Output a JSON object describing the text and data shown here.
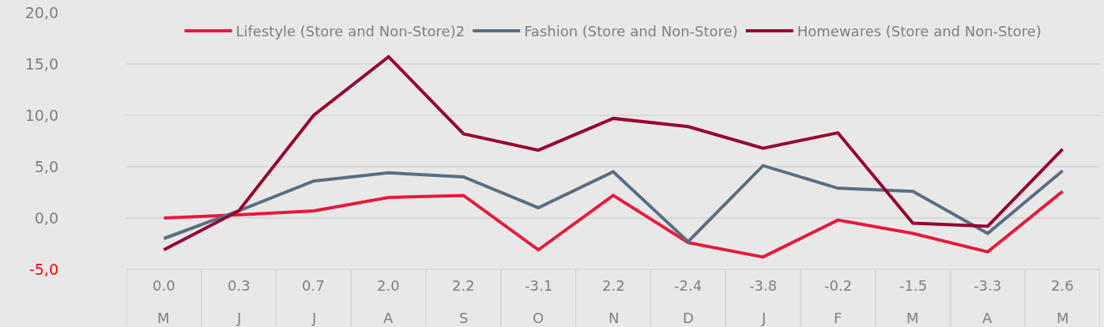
{
  "chart_data": {
    "type": "line",
    "categories": [
      "M",
      "J",
      "J",
      "A",
      "S",
      "O",
      "N",
      "D",
      "J",
      "F",
      "M",
      "A",
      "M"
    ],
    "series": [
      {
        "name": "Lifestyle (Store and Non-Store)2",
        "color": "#e8193c",
        "values": [
          0.0,
          0.3,
          0.7,
          2.0,
          2.2,
          -3.1,
          2.2,
          -2.4,
          -3.8,
          -0.2,
          -1.5,
          -3.3,
          2.6
        ],
        "value_labels": [
          "0.0",
          "0.3",
          "0.7",
          "2.0",
          "2.2",
          "-3.1",
          "2.2",
          "-2.4",
          "-3.8",
          "-0.2",
          "-1.5",
          "-3.3",
          "2.6"
        ]
      },
      {
        "name": "Fashion (Store and Non-Store)",
        "color": "#5a6e82",
        "values": [
          -2.0,
          0.7,
          3.6,
          4.4,
          4.0,
          1.0,
          4.5,
          -2.3,
          5.1,
          2.9,
          2.6,
          -1.5,
          4.6
        ]
      },
      {
        "name": "Homewares (Store and Non-Store)",
        "color": "#98002e",
        "values": [
          -3.1,
          0.7,
          10.0,
          15.7,
          8.2,
          6.6,
          9.7,
          8.9,
          6.8,
          8.3,
          -0.5,
          -0.8,
          6.7
        ]
      }
    ],
    "ylim": [
      -5,
      20
    ],
    "yticks": [
      {
        "value": -5,
        "label": "-5,0"
      },
      {
        "value": 0,
        "label": "0,0"
      },
      {
        "value": 5,
        "label": "5,0"
      },
      {
        "value": 10,
        "label": "10,0"
      },
      {
        "value": 15,
        "label": "15,0"
      },
      {
        "value": 20,
        "label": "20,0"
      }
    ],
    "grid": "y",
    "legend": "top",
    "marker": "none",
    "line_style": "solid"
  }
}
